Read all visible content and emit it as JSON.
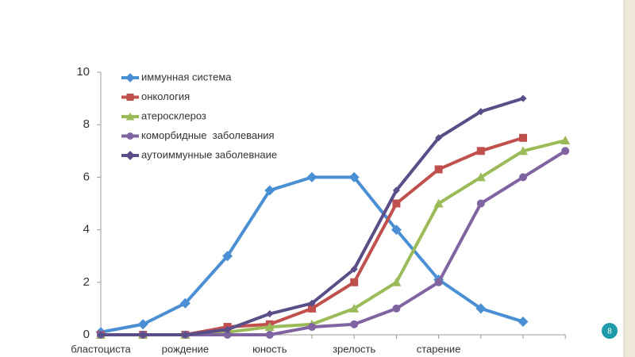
{
  "chart_data": {
    "type": "line",
    "categories": [
      "бластоциста",
      null,
      "рождение",
      null,
      "юность",
      null,
      "зрелость",
      null,
      "старение",
      null,
      null,
      null
    ],
    "series": [
      {
        "name": "иммунная система",
        "color": "#4a8fd4",
        "marker": "diamond",
        "values": [
          0.1,
          0.4,
          1.2,
          3.0,
          5.5,
          6.0,
          6.0,
          4.0,
          2.1,
          1.0,
          0.5,
          null
        ]
      },
      {
        "name": "онкология",
        "color": "#c0504d",
        "marker": "square",
        "values": [
          0,
          0,
          0,
          0.3,
          0.4,
          1.0,
          2.0,
          5.0,
          6.3,
          7.0,
          7.5,
          null
        ]
      },
      {
        "name": "атеросклероз",
        "color": "#9bbb59",
        "marker": "triangle",
        "values": [
          0,
          0,
          0,
          0.1,
          0.3,
          0.4,
          1.0,
          2.0,
          5.0,
          6.0,
          7.0,
          7.4
        ]
      },
      {
        "name": "коморбидные  заболевания",
        "color": "#8064a2",
        "marker": "circle",
        "values": [
          0,
          0,
          0,
          0,
          0,
          0.3,
          0.4,
          1.0,
          2.0,
          5.0,
          6.0,
          7.0
        ]
      },
      {
        "name": "аутоиммунные заболевнаие",
        "color": "#5b4e88",
        "marker": "diamond",
        "values": [
          0,
          0,
          0,
          0.2,
          0.8,
          1.2,
          2.5,
          5.5,
          7.5,
          8.5,
          9.0,
          null
        ]
      }
    ],
    "ylim": [
      0,
      10
    ],
    "yticks": [
      0,
      2,
      4,
      6,
      8,
      10
    ],
    "legend": "upper left"
  },
  "page_number": "8"
}
